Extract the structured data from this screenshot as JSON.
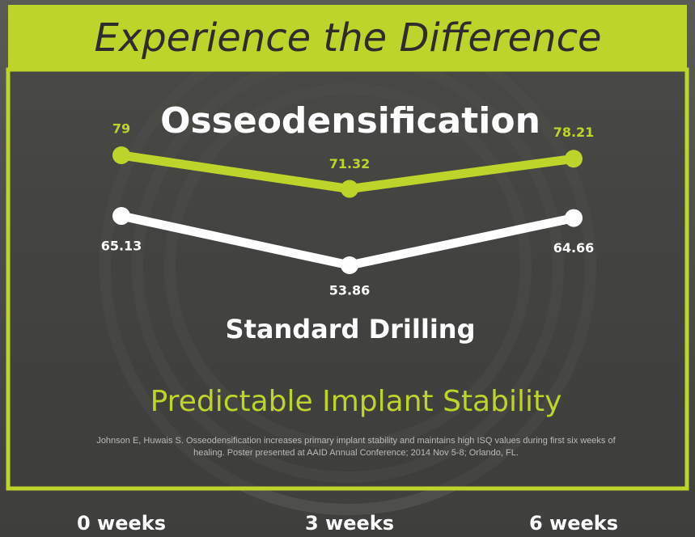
{
  "chart_data": {
    "type": "line",
    "title": "Experience the Difference",
    "subtitle": "Predictable Implant Stability",
    "note": "Johnson E, Huwais S. Osseodensification increases primary implant stability and maintains high ISQ values during first six weeks of healing. Poster presented at AAID  Annual Conference; 2014 Nov 5-8; Orlando, FL.",
    "categories": [
      "0 weeks",
      "3 weeks",
      "6 weeks"
    ],
    "series": [
      {
        "name": "Osseodensification",
        "color": "#bdd42a",
        "values": [
          79,
          71.32,
          78.21
        ]
      },
      {
        "name": "Standard Drilling",
        "color": "#ffffff",
        "values": [
          65.13,
          53.86,
          64.66
        ]
      }
    ]
  }
}
